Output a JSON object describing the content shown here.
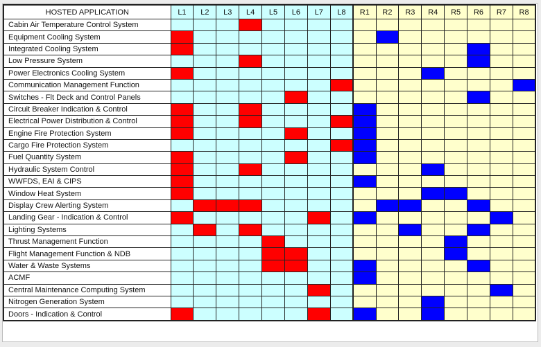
{
  "header": {
    "app_label": "HOSTED APPLICATION",
    "columns": [
      "L1",
      "L2",
      "L3",
      "L4",
      "L5",
      "L6",
      "L7",
      "L8",
      "R1",
      "R2",
      "R3",
      "R4",
      "R5",
      "R6",
      "R7",
      "R8"
    ]
  },
  "colors": {
    "left_bg": "#ccffff",
    "right_bg": "#ffffcc",
    "left_mark": "#ff0000",
    "right_mark": "#0000ff"
  },
  "rows": [
    {
      "name": "Cabin Air Temperature Control System",
      "marks": [
        "L4"
      ]
    },
    {
      "name": "Equipment Cooling System",
      "marks": [
        "L1",
        "R2"
      ]
    },
    {
      "name": "Integrated Cooling System",
      "marks": [
        "L1",
        "R6"
      ]
    },
    {
      "name": "Low Pressure System",
      "marks": [
        "L4",
        "R6"
      ]
    },
    {
      "name": "Power Electronics Cooling System",
      "marks": [
        "L1",
        "R4"
      ]
    },
    {
      "name": "Communication Management Function",
      "marks": [
        "L8",
        "R8"
      ]
    },
    {
      "name": "Switches - Flt Deck and Control Panels",
      "marks": [
        "L6",
        "R6"
      ]
    },
    {
      "name": "Circuit Breaker Indication & Control",
      "marks": [
        "L1",
        "L4",
        "R1"
      ]
    },
    {
      "name": "Electrical Power Distribution & Control",
      "marks": [
        "L1",
        "L4",
        "L8",
        "R1"
      ]
    },
    {
      "name": "Engine Fire Protection System",
      "marks": [
        "L1",
        "L6",
        "R1"
      ]
    },
    {
      "name": "Cargo Fire Protection System",
      "marks": [
        "L8",
        "R1"
      ]
    },
    {
      "name": "Fuel Quantity System",
      "marks": [
        "L1",
        "L6",
        "R1"
      ]
    },
    {
      "name": "Hydraulic System Control",
      "marks": [
        "L1",
        "L4",
        "R4"
      ]
    },
    {
      "name": "WWFDS, EAI & CIPS",
      "marks": [
        "L1",
        "R1"
      ]
    },
    {
      "name": "Window Heat System",
      "marks": [
        "L1",
        "R4",
        "R5"
      ]
    },
    {
      "name": "Display Crew Alerting System",
      "marks": [
        "L2",
        "L3",
        "L4",
        "R2",
        "R3",
        "R6"
      ]
    },
    {
      "name": "Landing Gear - Indication & Control",
      "marks": [
        "L1",
        "L7",
        "R1",
        "R7"
      ]
    },
    {
      "name": "Lighting Systems",
      "marks": [
        "L2",
        "L4",
        "R3",
        "R6"
      ]
    },
    {
      "name": "Thrust Management Function",
      "marks": [
        "L5",
        "R5"
      ]
    },
    {
      "name": "Flight Management Function & NDB",
      "marks": [
        "L5",
        "L6",
        "R5"
      ]
    },
    {
      "name": "Water & Waste Systems",
      "marks": [
        "L5",
        "L6",
        "R1",
        "R6"
      ]
    },
    {
      "name": "ACMF",
      "marks": [
        "R1"
      ]
    },
    {
      "name": "Central Maintenance Computing System",
      "marks": [
        "L7",
        "R7"
      ]
    },
    {
      "name": "Nitrogen Generation System",
      "marks": [
        "R4"
      ]
    },
    {
      "name": "Doors - Indication & Control",
      "marks": [
        "L1",
        "L7",
        "R1",
        "R4"
      ]
    }
  ]
}
